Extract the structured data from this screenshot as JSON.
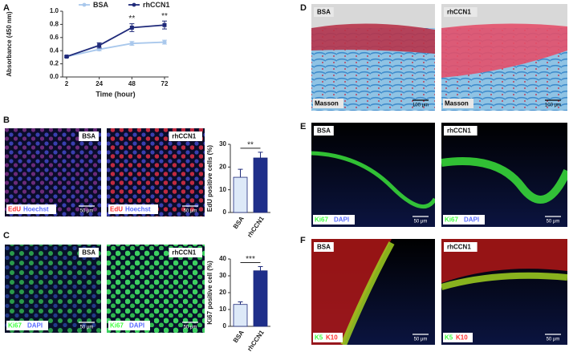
{
  "chart_data": [
    {
      "type": "line",
      "y_label": "Absorbance (450 nm)",
      "x_label": "Time (hour)",
      "categories": [
        "2",
        "24",
        "48",
        "72"
      ],
      "series": [
        {
          "name": "BSA",
          "color": "#a9c8ec",
          "values": [
            0.31,
            0.42,
            0.51,
            0.53
          ],
          "errors": [
            0.01,
            0.02,
            0.03,
            0.03
          ]
        },
        {
          "name": "rhCCN1",
          "color": "#1f2a7a",
          "values": [
            0.31,
            0.48,
            0.75,
            0.79
          ],
          "errors": [
            0.01,
            0.04,
            0.06,
            0.06
          ]
        }
      ],
      "ylim": [
        0,
        1
      ],
      "yticks": [
        {
          "value": 0,
          "label": "0.0"
        },
        0.2,
        0.4,
        0.6,
        0.8,
        {
          "value": 1,
          "label": "1.0"
        }
      ],
      "annotations": [
        {
          "text": "**",
          "x": "48"
        },
        {
          "text": "**",
          "x": "72"
        }
      ],
      "legend": "top"
    },
    {
      "type": "bar",
      "y_label": "EdU positive cells (%)",
      "categories": [
        "BSA",
        "rhCCN1"
      ],
      "values": [
        15.5,
        24
      ],
      "errors": [
        3.5,
        2.5
      ],
      "colors": [
        "#dde9f8",
        "#1f2f8a"
      ],
      "ylim": [
        0,
        30
      ],
      "yticks": [
        0,
        10,
        20,
        30
      ],
      "annotation": "**"
    },
    {
      "type": "bar",
      "y_label": "Ki67 positive cell (%)",
      "categories": [
        "BSA",
        "rhCCN1"
      ],
      "values": [
        13,
        33
      ],
      "errors": [
        1.5,
        2.5
      ],
      "colors": [
        "#dde9f8",
        "#1f2f8a"
      ],
      "ylim": [
        0,
        40
      ],
      "yticks": [
        0,
        10,
        20,
        30,
        40
      ],
      "annotation": "***"
    }
  ],
  "panels": {
    "letters": [
      "A",
      "B",
      "C",
      "D",
      "E",
      "F"
    ],
    "images": [
      {
        "label": "BSA",
        "stains": [
          {
            "text": "EdU",
            "color": "#ff3030"
          },
          {
            "text": "Hoechst",
            "color": "#5a6cff"
          }
        ],
        "scale": "50 μm"
      },
      {
        "label": "rhCCN1",
        "stains": [
          {
            "text": "EdU",
            "color": "#ff3030"
          },
          {
            "text": "Hoechst",
            "color": "#5a6cff"
          }
        ],
        "scale": "50 μm"
      },
      {
        "label": "BSA",
        "stains": [
          {
            "text": "Ki67",
            "color": "#40ff40"
          },
          {
            "text": "DAPI",
            "color": "#5a6cff"
          }
        ],
        "scale": "50 μm"
      },
      {
        "label": "rhCCN1",
        "stains": [
          {
            "text": "Ki67",
            "color": "#40ff40"
          },
          {
            "text": "DAPI",
            "color": "#5a6cff"
          }
        ],
        "scale": "50 μm"
      },
      {
        "label": "BSA",
        "stains": [
          {
            "text": "Masson",
            "color": "#000000"
          }
        ],
        "scale": "100 μm"
      },
      {
        "label": "rhCCN1",
        "stains": [
          {
            "text": "Masson",
            "color": "#000000"
          }
        ],
        "scale": "100 μm"
      },
      {
        "label": "BSA",
        "stains": [
          {
            "text": "Ki67",
            "color": "#40ff40"
          },
          {
            "text": "DAPI",
            "color": "#5a6cff"
          }
        ],
        "scale": "50 μm"
      },
      {
        "label": "rhCCN1",
        "stains": [
          {
            "text": "Ki67",
            "color": "#40ff40"
          },
          {
            "text": "DAPI",
            "color": "#5a6cff"
          }
        ],
        "scale": "50 μm"
      },
      {
        "label": "BSA",
        "stains": [
          {
            "text": "K5",
            "color": "#40ff40"
          },
          {
            "text": "K10",
            "color": "#ff3030"
          }
        ],
        "scale": "50 μm"
      },
      {
        "label": "rhCCN1",
        "stains": [
          {
            "text": "K5",
            "color": "#40ff40"
          },
          {
            "text": "K10",
            "color": "#ff3030"
          }
        ],
        "scale": "50 μm"
      }
    ]
  }
}
